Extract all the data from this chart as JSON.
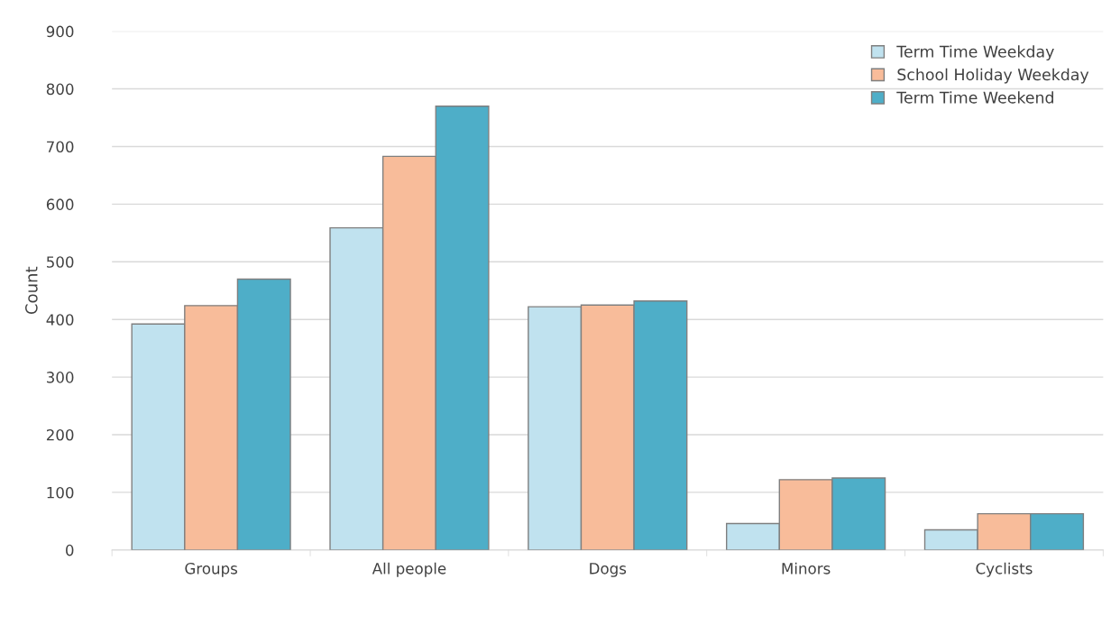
{
  "chart_data": {
    "type": "bar",
    "ylabel": "Count",
    "categories": [
      "Groups",
      "All people",
      "Dogs",
      "Minors",
      "Cyclists"
    ],
    "series": [
      {
        "name": "Term Time Weekday",
        "color": "#c0e2ef",
        "values": [
          392,
          559,
          422,
          46,
          35
        ]
      },
      {
        "name": "School Holiday Weekday",
        "color": "#f8bc9a",
        "values": [
          424,
          683,
          425,
          122,
          63
        ]
      },
      {
        "name": "Term Time Weekend",
        "color": "#4eaec8",
        "values": [
          470,
          770,
          432,
          125,
          63
        ]
      }
    ],
    "ylim": [
      0,
      900
    ],
    "yticks": [
      0,
      100,
      200,
      300,
      400,
      500,
      600,
      700,
      800,
      900
    ],
    "grid": "y",
    "legend": "top right"
  }
}
